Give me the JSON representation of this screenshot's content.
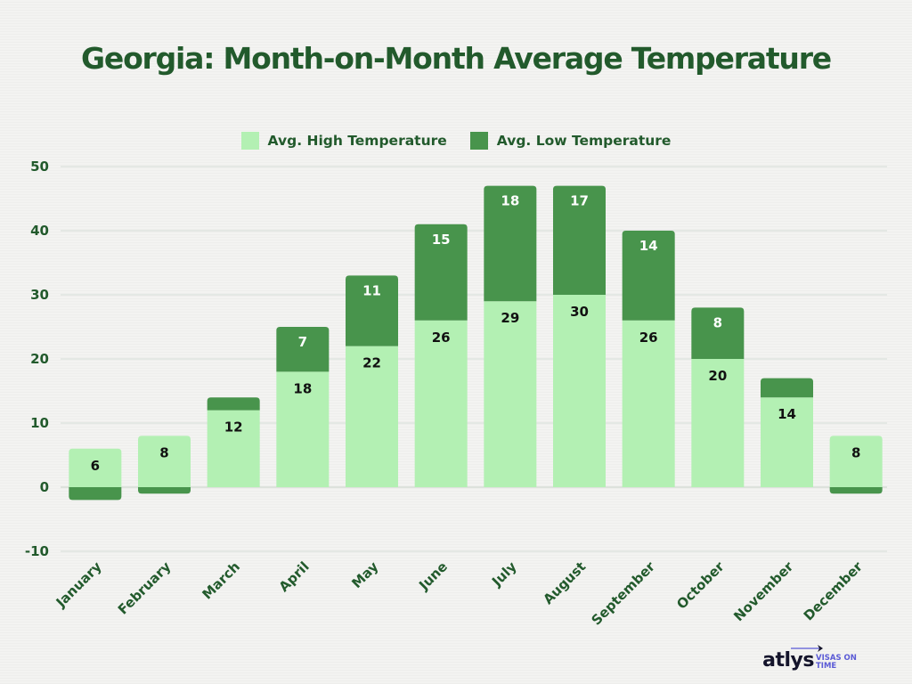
{
  "chart_data": {
    "type": "bar",
    "stacked": true,
    "title": "Georgia: Month-on-Month Average Temperature",
    "xlabel": "",
    "ylabel": "",
    "ylim": [
      -10,
      50
    ],
    "yticks": [
      "50",
      "40",
      "30",
      "20",
      "10",
      "0",
      "-10"
    ],
    "ytick_values": [
      50,
      40,
      30,
      20,
      10,
      0,
      -10
    ],
    "grid": true,
    "legend_position": "top-center",
    "categories": [
      "January",
      "February",
      "March",
      "April",
      "May",
      "June",
      "July",
      "August",
      "September",
      "October",
      "November",
      "December"
    ],
    "series": [
      {
        "name": "Avg. High Temperature",
        "color": "#b3f0b3",
        "values": [
          6,
          8,
          12,
          18,
          22,
          26,
          29,
          30,
          26,
          20,
          14,
          8
        ],
        "data_labels": [
          "6",
          "8",
          "12",
          "18",
          "22",
          "26",
          "29",
          "30",
          "26",
          "20",
          "14",
          "8"
        ]
      },
      {
        "name": "Avg. Low Temperature",
        "color": "#48944c",
        "values": [
          -2,
          -1,
          2,
          7,
          11,
          15,
          18,
          17,
          14,
          8,
          3,
          -1
        ],
        "data_labels": [
          "",
          "",
          "",
          "7",
          "11",
          "15",
          "18",
          "17",
          "14",
          "8",
          "",
          ""
        ]
      }
    ]
  },
  "colors": {
    "title": "#225a2c",
    "axis_text": "#225a2c",
    "gridline": "#d6ddd6",
    "background": "#f3f3f1"
  },
  "branding": {
    "name": "atlys",
    "tagline": "VISAS ON TIME",
    "icon": "airplane-icon"
  }
}
